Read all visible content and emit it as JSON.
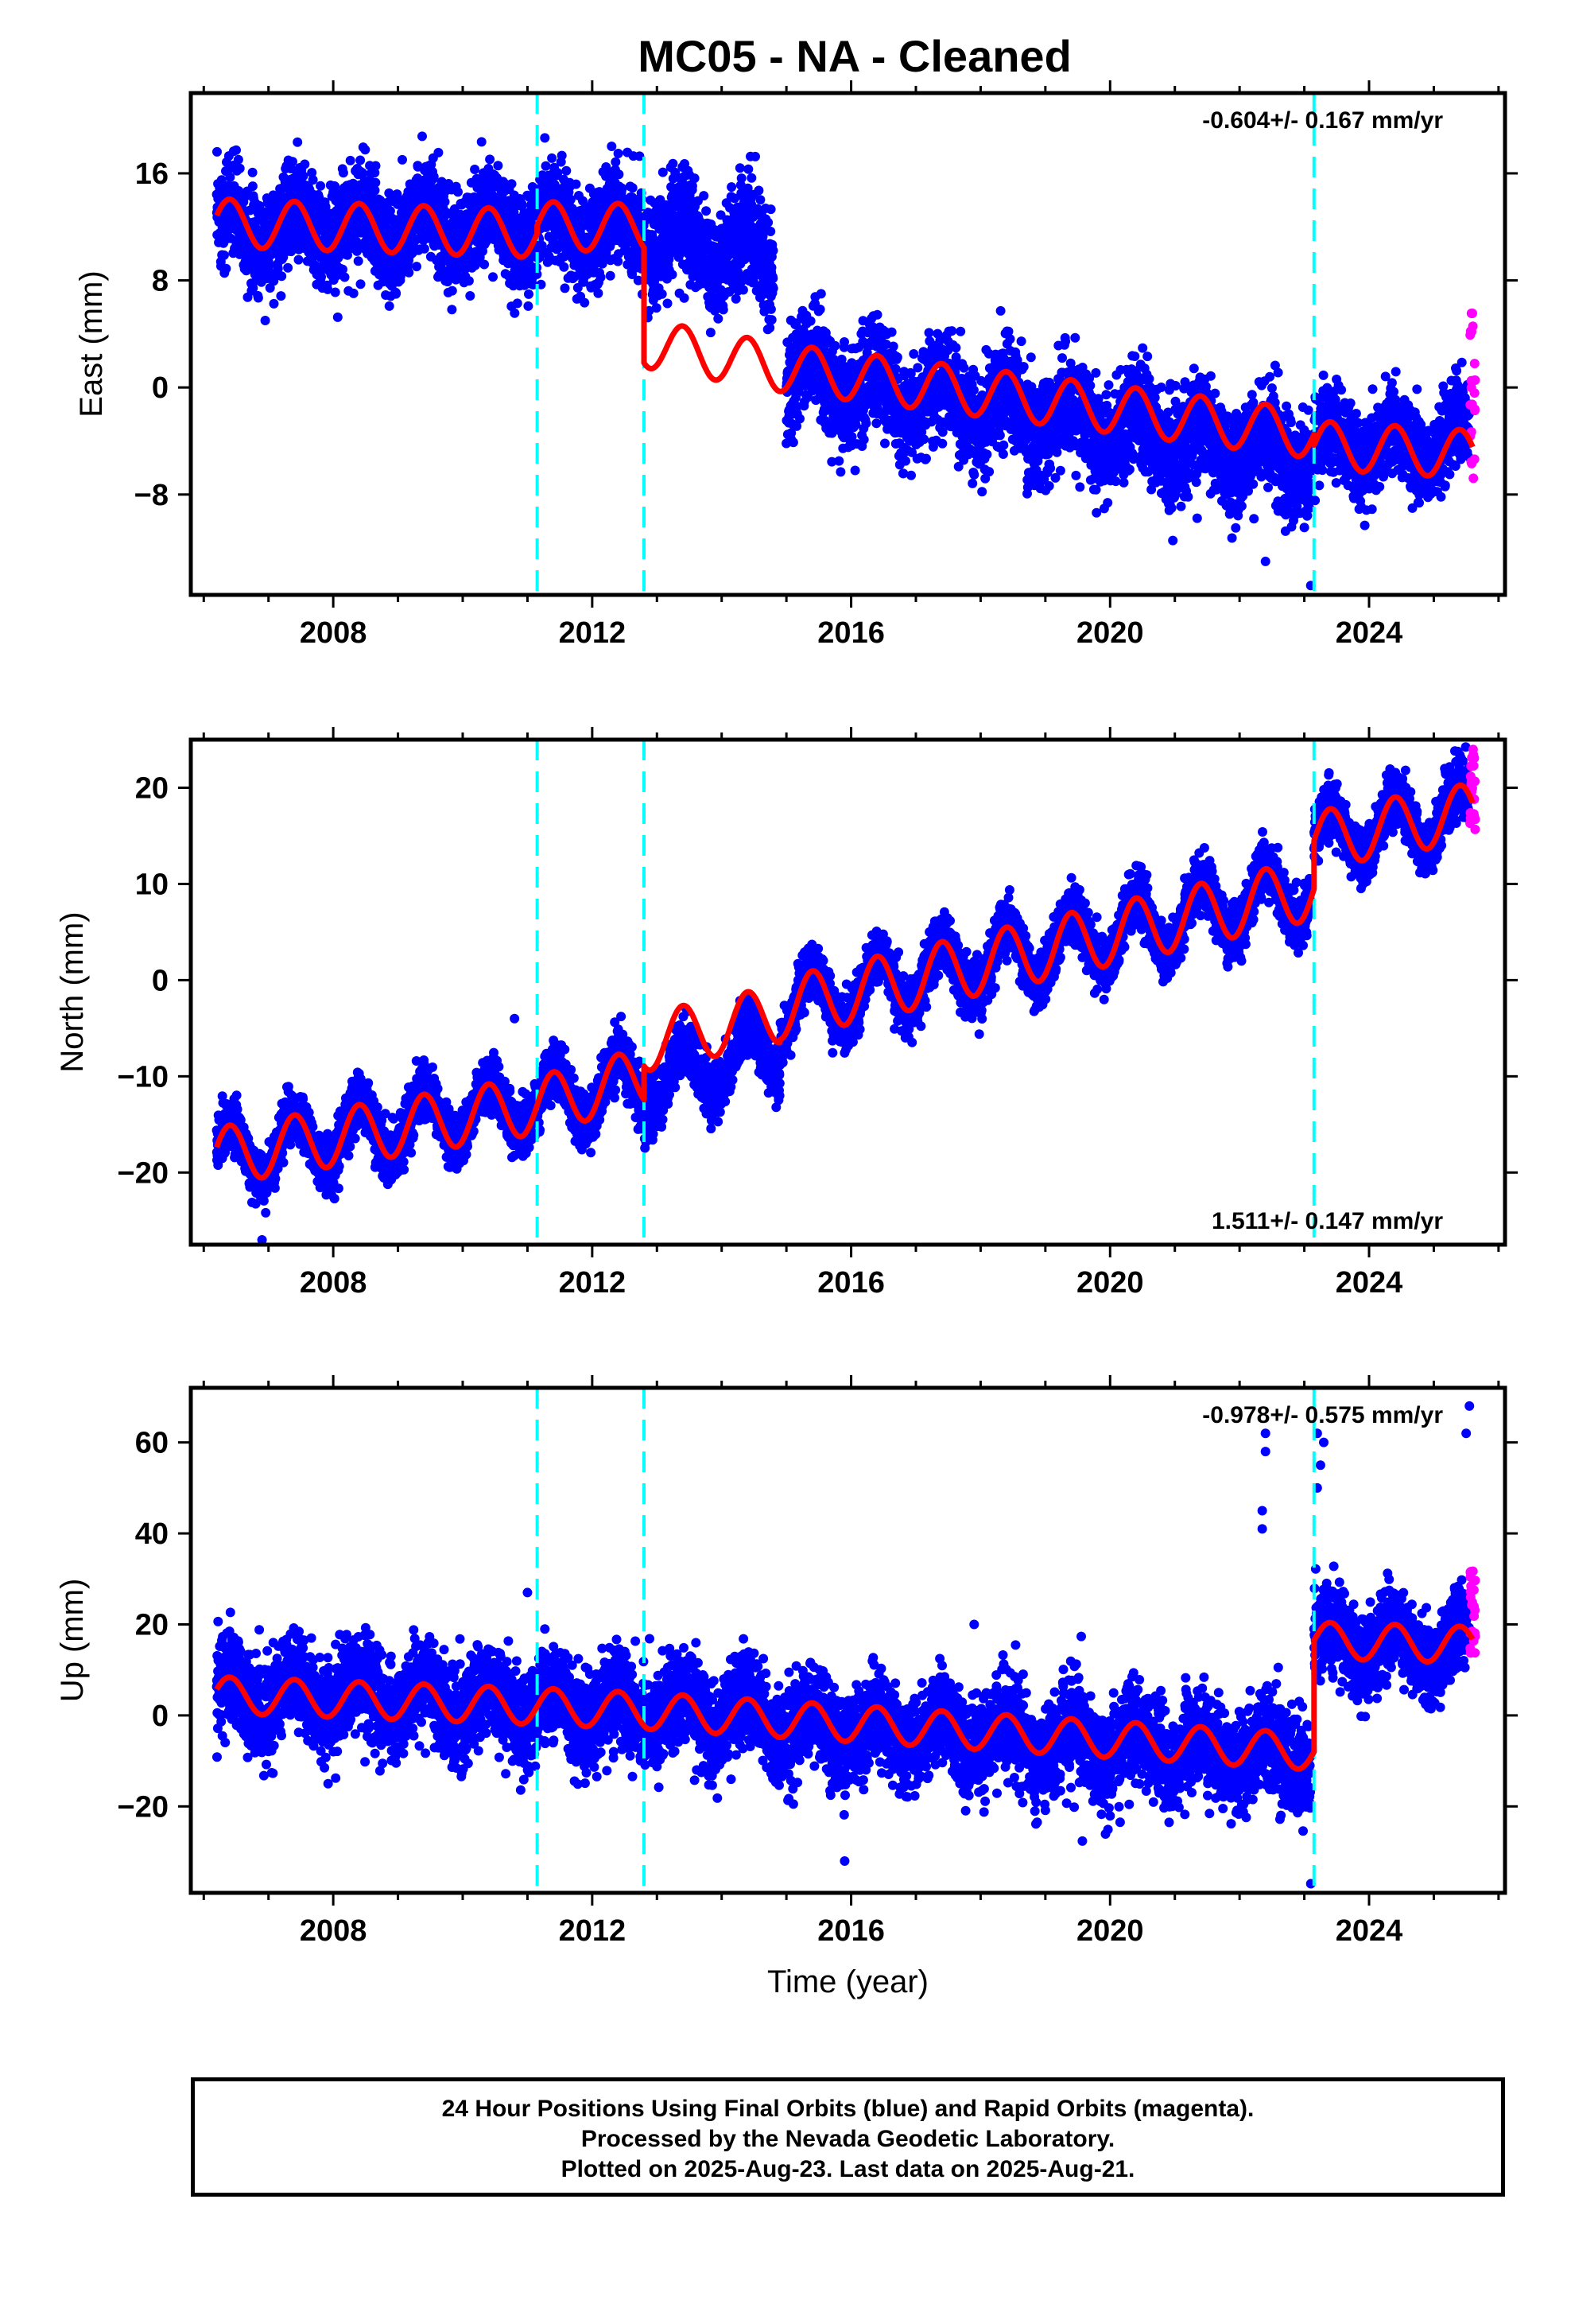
{
  "chart_data": [
    {
      "type": "scatter",
      "title": "MC05  - NA - Cleaned",
      "ylabel": "East (mm)",
      "xlabel": "",
      "xlim": [
        2005.8,
        2026.1
      ],
      "ylim": [
        -15.5,
        22
      ],
      "xticks": [
        2008,
        2012,
        2016,
        2020,
        2024
      ],
      "yticks": [
        -8,
        0,
        8,
        16
      ],
      "rate_text": "-0.604+/- 0.167 mm/yr",
      "rate_position": "top-right",
      "grid": false,
      "equipment_changes": [
        2011.15,
        2012.8,
        2023.15
      ],
      "colors": {
        "final": "#0000ff",
        "rapid": "#ff00ff",
        "model": "#ff0000",
        "breaks": "#00ffff"
      },
      "series": [
        {
          "name": "final-orbits",
          "segments": [
            {
              "start": 2006.2,
              "end": 2012.8,
              "base_start": 12.0,
              "base_end": 12.0,
              "amp": 1.5,
              "noise": 1.8
            },
            {
              "start": 2012.8,
              "end": 2014.8,
              "base_start": 11.5,
              "base_end": 9.5,
              "amp": 1.5,
              "noise": 1.8
            },
            {
              "start": 2015.0,
              "end": 2023.1,
              "base_start": 1.0,
              "base_end": -5.5,
              "amp": 1.5,
              "noise": 1.9
            },
            {
              "start": 2023.15,
              "end": 2025.55,
              "base_start": -4.5,
              "base_end": -4.2,
              "amp": 1.5,
              "noise": 1.6
            }
          ],
          "outliers": [
            [
              2010.1,
              22.5
            ],
            [
              2022.4,
              -13.0
            ],
            [
              2023.1,
              -14.8
            ]
          ]
        },
        {
          "name": "rapid-orbits",
          "x_start": 2025.56,
          "x_end": 2025.64,
          "y_min": -7.5,
          "y_max": 6.0
        },
        {
          "name": "model-fit",
          "segments": [
            {
              "start": 2006.2,
              "end": 2011.15,
              "base_start": 12.3,
              "base_end": 11.5,
              "amp": 1.8
            },
            {
              "start": 2011.15,
              "end": 2012.8,
              "base_start": 12.1,
              "base_end": 11.9,
              "amp": 1.8
            },
            {
              "start": 2012.8,
              "end": 2014.9,
              "base_start": 3.3,
              "base_end": 1.5,
              "amp": 1.8
            },
            {
              "start": 2014.9,
              "end": 2023.15,
              "base_start": 1.5,
              "base_end": -3.5,
              "amp": 1.8
            },
            {
              "start": 2023.15,
              "end": 2025.6,
              "base_start": -4.3,
              "base_end": -5.0,
              "amp": 1.8
            }
          ]
        }
      ]
    },
    {
      "type": "scatter",
      "title": "",
      "ylabel": "North (mm)",
      "xlabel": "",
      "xlim": [
        2005.8,
        2026.1
      ],
      "ylim": [
        -27.5,
        25
      ],
      "xticks": [
        2008,
        2012,
        2016,
        2020,
        2024
      ],
      "yticks": [
        -20,
        -10,
        0,
        10,
        20
      ],
      "rate_text": "1.511+/- 0.147 mm/yr",
      "rate_position": "bottom-right",
      "grid": false,
      "equipment_changes": [
        2011.15,
        2012.8,
        2023.15
      ],
      "colors": {
        "final": "#0000ff",
        "rapid": "#ff00ff",
        "model": "#ff0000",
        "breaks": "#00ffff"
      },
      "series": [
        {
          "name": "final-orbits",
          "segments": [
            {
              "start": 2006.2,
              "end": 2012.8,
              "base_start": -18.5,
              "base_end": -10.5,
              "amp": 3.0,
              "noise": 1.4
            },
            {
              "start": 2012.8,
              "end": 2014.9,
              "base_start": -11.0,
              "base_end": -7.0,
              "amp": 3.0,
              "noise": 1.4
            },
            {
              "start": 2014.9,
              "end": 2023.1,
              "base_start": -3.0,
              "base_end": 9.5,
              "amp": 3.2,
              "noise": 1.4
            },
            {
              "start": 2023.15,
              "end": 2025.55,
              "base_start": 14.5,
              "base_end": 17.5,
              "amp": 3.0,
              "noise": 1.4
            }
          ],
          "outliers": [
            [
              2010.8,
              -4.0
            ],
            [
              2006.9,
              -27.0
            ]
          ]
        },
        {
          "name": "rapid-orbits",
          "x_start": 2025.56,
          "x_end": 2025.64,
          "y_min": 15.5,
          "y_max": 24.0
        },
        {
          "name": "model-fit",
          "segments": [
            {
              "start": 2006.2,
              "end": 2011.15,
              "base_start": -18.3,
              "base_end": -13.0,
              "amp": 3.0
            },
            {
              "start": 2011.15,
              "end": 2012.8,
              "base_start": -13.0,
              "base_end": -10.0,
              "amp": 3.0
            },
            {
              "start": 2012.8,
              "end": 2014.9,
              "base_start": -6.5,
              "base_end": -3.5,
              "amp": 3.0
            },
            {
              "start": 2014.9,
              "end": 2023.15,
              "base_start": -3.0,
              "base_end": 9.5,
              "amp": 3.2
            },
            {
              "start": 2023.15,
              "end": 2025.6,
              "base_start": 14.5,
              "base_end": 17.5,
              "amp": 3.0
            }
          ]
        }
      ]
    },
    {
      "type": "scatter",
      "title": "",
      "ylabel": "Up (mm)",
      "xlabel": "Time (year)",
      "xlim": [
        2005.8,
        2026.1
      ],
      "ylim": [
        -39,
        72
      ],
      "xticks": [
        2008,
        2012,
        2016,
        2020,
        2024
      ],
      "yticks": [
        -20,
        0,
        20,
        40,
        60
      ],
      "rate_text": "-0.978+/- 0.575 mm/yr",
      "rate_position": "top-right",
      "grid": false,
      "equipment_changes": [
        2011.15,
        2012.8,
        2023.15
      ],
      "colors": {
        "final": "#0000ff",
        "rapid": "#ff00ff",
        "model": "#ff0000",
        "breaks": "#00ffff"
      },
      "series": [
        {
          "name": "final-orbits",
          "segments": [
            {
              "start": 2006.2,
              "end": 2014.8,
              "base_start": 5.0,
              "base_end": 0.0,
              "amp": 4.0,
              "noise": 5.0
            },
            {
              "start": 2014.8,
              "end": 2023.1,
              "base_start": -2.0,
              "base_end": -9.0,
              "amp": 4.0,
              "noise": 5.2
            },
            {
              "start": 2023.15,
              "end": 2025.55,
              "base_start": 16.0,
              "base_end": 15.0,
              "amp": 4.0,
              "noise": 4.5
            }
          ],
          "outliers": [
            [
              2022.35,
              41
            ],
            [
              2022.35,
              45
            ],
            [
              2022.4,
              58
            ],
            [
              2022.4,
              62
            ],
            [
              2023.2,
              50
            ],
            [
              2023.25,
              55
            ],
            [
              2023.3,
              60
            ],
            [
              2023.2,
              62
            ],
            [
              2025.5,
              62
            ],
            [
              2025.55,
              68
            ],
            [
              2015.9,
              -32
            ],
            [
              2023.1,
              -37
            ],
            [
              2017.9,
              20
            ],
            [
              2011.0,
              27
            ]
          ]
        },
        {
          "name": "rapid-orbits",
          "x_start": 2025.56,
          "x_end": 2025.64,
          "y_min": 12,
          "y_max": 32
        },
        {
          "name": "model-fit",
          "segments": [
            {
              "start": 2006.2,
              "end": 2011.15,
              "base_start": 4.5,
              "base_end": 2.0,
              "amp": 4.0
            },
            {
              "start": 2011.15,
              "end": 2012.8,
              "base_start": 2.0,
              "base_end": 1.0,
              "amp": 4.0
            },
            {
              "start": 2012.8,
              "end": 2023.15,
              "base_start": 1.0,
              "base_end": -8.0,
              "amp": 4.0
            },
            {
              "start": 2023.15,
              "end": 2025.6,
              "base_start": 16.5,
              "base_end": 15.5,
              "amp": 4.0
            }
          ]
        }
      ]
    }
  ],
  "footer": {
    "line1": "24 Hour Positions Using Final Orbits (blue) and Rapid Orbits (magenta).",
    "line2": "Processed by the Nevada Geodetic Laboratory.",
    "line3": "Plotted on 2025-Aug-23. Last data on 2025-Aug-21."
  }
}
